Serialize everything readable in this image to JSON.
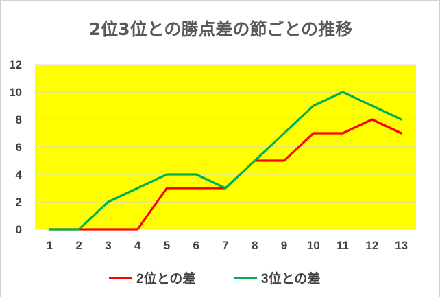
{
  "chart_data": {
    "type": "line",
    "title": "2位3位との勝点差の節ごとの推移",
    "categories": [
      "1",
      "2",
      "3",
      "4",
      "5",
      "6",
      "7",
      "8",
      "9",
      "10",
      "11",
      "12",
      "13"
    ],
    "ylim": [
      0,
      12
    ],
    "yticks": [
      0,
      2,
      4,
      6,
      8,
      10,
      12
    ],
    "grid": true,
    "legend_position": "bottom",
    "plot_background": "#FFFF00",
    "series": [
      {
        "name": "2位との差",
        "color": "#FF0000",
        "values": [
          0,
          0,
          0,
          0,
          3,
          3,
          3,
          5,
          5,
          7,
          7,
          8,
          7
        ]
      },
      {
        "name": "3位との差",
        "color": "#00B050",
        "values": [
          0,
          0,
          2,
          3,
          4,
          4,
          3,
          5,
          7,
          9,
          10,
          9,
          8
        ]
      }
    ]
  }
}
